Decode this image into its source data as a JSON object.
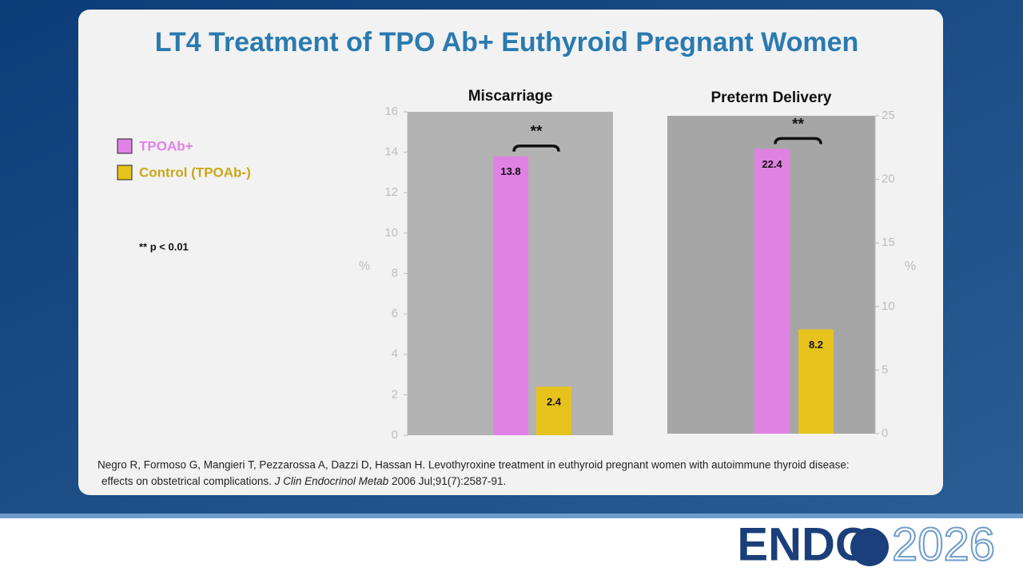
{
  "title": "LT4 Treatment of TPO Ab+ Euthyroid Pregnant Women",
  "footnote": "** p < 0.01",
  "citation": [
    "Negro R, Formoso G, Mangieri T, Pezzarossa A, Dazzi D, Hassan H. Levothyroxine treatment in euthyroid pregnant women with autoimmune thyroid disease:",
    "effects on obstetrical complications. ",
    "J Clin Endocrinol Metab",
    " 2006 Jul;91(7):2587-91."
  ],
  "logo": {
    "word": "ENDO",
    "year": "2026"
  },
  "chart_data": [
    {
      "type": "bar",
      "title": "Miscarriage",
      "y_label": "%",
      "ylim": [
        0,
        16
      ],
      "yticks": [
        0,
        2,
        4,
        6,
        8,
        10,
        12,
        14,
        16
      ],
      "annotation": "**",
      "series": [
        {
          "name": "TPOAb+",
          "color": "#e082e3",
          "values": [
            13.8
          ]
        },
        {
          "name": "Control (TPOAb-)",
          "color": "#e6c31c",
          "values": [
            2.4
          ]
        }
      ]
    },
    {
      "type": "bar",
      "title": "Preterm Delivery",
      "y_label": "%",
      "ylim": [
        0,
        25
      ],
      "yticks": [
        0,
        5,
        10,
        15,
        20,
        25
      ],
      "y_axis_side": "right",
      "annotation": "**",
      "series": [
        {
          "color": "#e082e3",
          "values": [
            22.4
          ]
        },
        {
          "color": "#e6c31c",
          "values": [
            8.2
          ]
        }
      ]
    }
  ]
}
